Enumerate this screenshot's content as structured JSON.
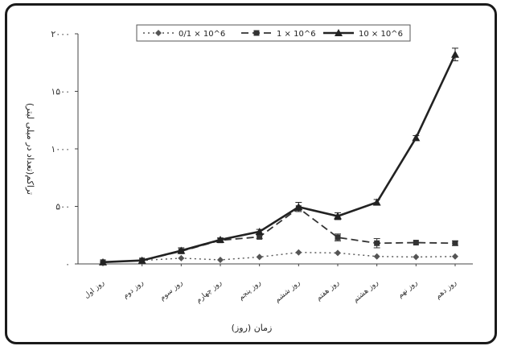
{
  "chart_data": {
    "type": "line",
    "xlabel": "زمان (روز)",
    "ylabel": "تراکم(تعداد در میلی لیتر)",
    "ylim": [
      0,
      2000
    ],
    "yticks": [
      "۰",
      "۵۰۰",
      "۱۰۰۰",
      "۱۵۰۰",
      "۲۰۰۰"
    ],
    "categories": [
      "روز اول",
      "روز دوم",
      "روز سوم",
      "روز چهارم",
      "روز پنجم",
      "روز ششم",
      "روز هفتم",
      "روز هشتم",
      "روز نهم",
      "روز دهم"
    ],
    "legend_position": "top",
    "grid": false,
    "series": [
      {
        "name": "0/1 × 10^6",
        "style": "dotted",
        "marker": "diamond",
        "color": "#555555",
        "values": [
          15,
          30,
          50,
          35,
          60,
          100,
          95,
          65,
          60,
          65
        ],
        "errors": [
          0,
          0,
          0,
          0,
          0,
          0,
          0,
          0,
          0,
          0
        ]
      },
      {
        "name": "1 × 10^6",
        "style": "dashed",
        "marker": "square",
        "color": "#333333",
        "values": [
          15,
          30,
          110,
          205,
          235,
          485,
          230,
          180,
          185,
          180
        ],
        "errors": [
          0,
          0,
          0,
          0,
          15,
          0,
          30,
          40,
          0,
          20
        ]
      },
      {
        "name": "10 × 10^6",
        "style": "solid",
        "marker": "triangle",
        "color": "#222222",
        "values": [
          15,
          30,
          115,
          210,
          280,
          495,
          415,
          535,
          1095,
          1820
        ],
        "errors": [
          0,
          0,
          25,
          15,
          20,
          40,
          30,
          25,
          20,
          55
        ]
      }
    ]
  }
}
